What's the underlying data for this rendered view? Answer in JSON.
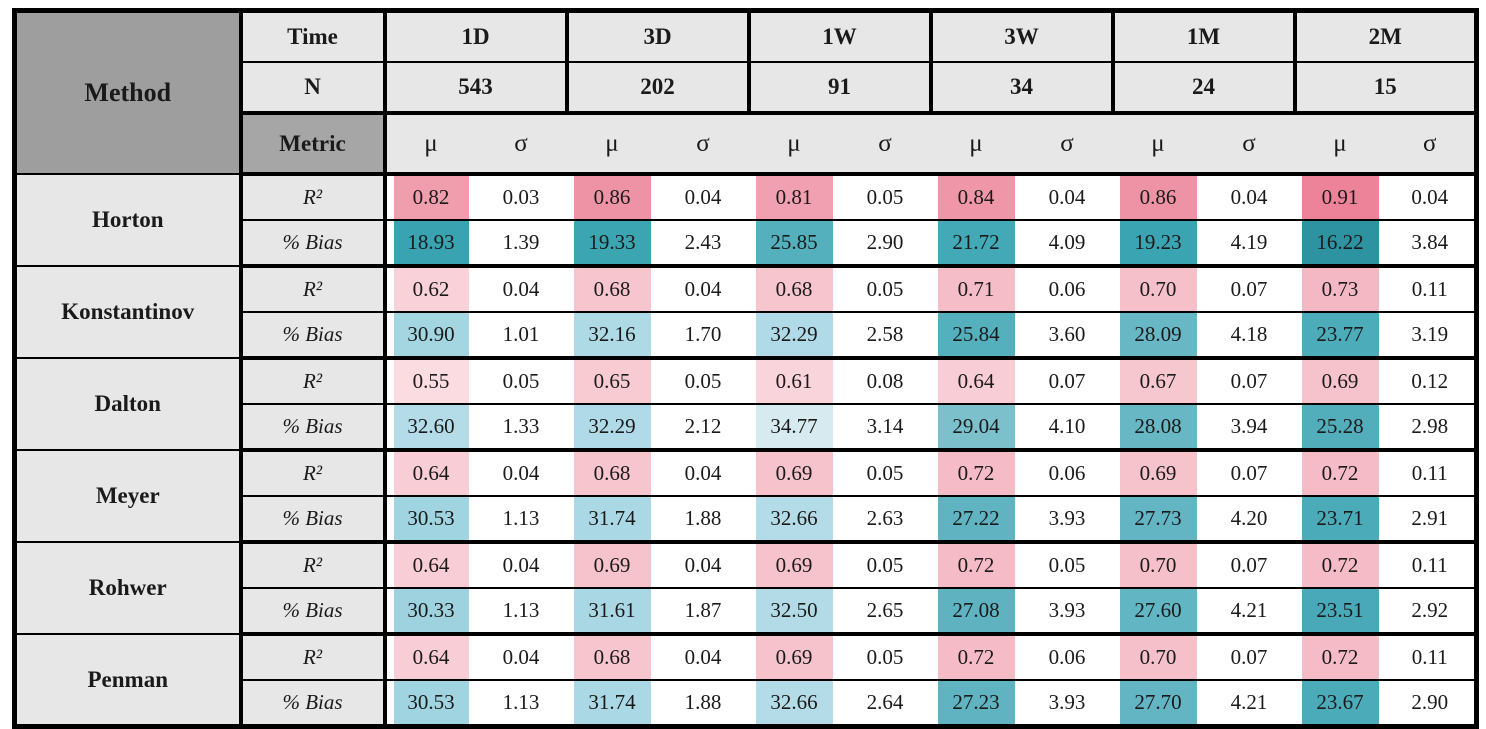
{
  "header": {
    "method_label": "Method",
    "time_label": "Time",
    "n_label": "N",
    "metric_label": "Metric",
    "mu": "μ",
    "sigma": "σ",
    "periods": [
      {
        "time": "1D",
        "n": "543"
      },
      {
        "time": "3D",
        "n": "202"
      },
      {
        "time": "1W",
        "n": "91"
      },
      {
        "time": "3W",
        "n": "34"
      },
      {
        "time": "1M",
        "n": "24"
      },
      {
        "time": "2M",
        "n": "15"
      }
    ]
  },
  "metric_row_labels": {
    "r2": "R²",
    "bias": "% Bias"
  },
  "colors": {
    "border": "#000000",
    "header_dark_gray": "#9e9e9e",
    "metric_gray": "#a6a6a6",
    "light_gray": "#e7e7e7",
    "r2_scale_low": "#fadce1",
    "r2_scale_high": "#ec8398",
    "bias_scale_low": "#d7eaf0",
    "bias_scale_high": "#2e93a1"
  },
  "methods": [
    {
      "name": "Horton",
      "r2": {
        "mu": [
          "0.82",
          "0.86",
          "0.81",
          "0.84",
          "0.86",
          "0.91"
        ],
        "sigma": [
          "0.03",
          "0.04",
          "0.05",
          "0.04",
          "0.04",
          "0.04"
        ],
        "mu_colors": [
          "#f09dad",
          "#ee92a5",
          "#f0a0b0",
          "#ef97a9",
          "#ee92a5",
          "#ec8398"
        ]
      },
      "bias": {
        "mu": [
          "18.93",
          "19.33",
          "25.85",
          "21.72",
          "19.23",
          "16.22"
        ],
        "sigma": [
          "1.39",
          "2.43",
          "2.90",
          "4.09",
          "4.19",
          "3.84"
        ],
        "mu_colors": [
          "#39a3b1",
          "#3ba5b2",
          "#55b0bd",
          "#44a9b6",
          "#3aa4b2",
          "#2e93a1"
        ]
      }
    },
    {
      "name": "Konstantinov",
      "r2": {
        "mu": [
          "0.62",
          "0.68",
          "0.68",
          "0.71",
          "0.70",
          "0.73"
        ],
        "sigma": [
          "0.04",
          "0.04",
          "0.05",
          "0.06",
          "0.07",
          "0.11"
        ],
        "mu_colors": [
          "#f9d2d9",
          "#f7c5ce",
          "#f7c5ce",
          "#f5bdc8",
          "#f6c0ca",
          "#f4b8c4"
        ]
      },
      "bias": {
        "mu": [
          "30.90",
          "32.16",
          "32.29",
          "25.84",
          "28.09",
          "23.77"
        ],
        "sigma": [
          "1.01",
          "1.70",
          "2.58",
          "3.60",
          "4.18",
          "3.19"
        ],
        "mu_colors": [
          "#a4d6e2",
          "#aedae6",
          "#b0dae7",
          "#55b0bd",
          "#67b7c4",
          "#4dacba"
        ]
      }
    },
    {
      "name": "Dalton",
      "r2": {
        "mu": [
          "0.55",
          "0.65",
          "0.61",
          "0.64",
          "0.67",
          "0.69"
        ],
        "sigma": [
          "0.05",
          "0.05",
          "0.08",
          "0.07",
          "0.07",
          "0.12"
        ],
        "mu_colors": [
          "#fadce1",
          "#f8cbd3",
          "#f9d4da",
          "#f8cdd5",
          "#f7c7d0",
          "#f6c2cc"
        ]
      },
      "bias": {
        "mu": [
          "32.60",
          "32.29",
          "34.77",
          "29.04",
          "28.08",
          "25.28"
        ],
        "sigma": [
          "1.33",
          "2.12",
          "3.14",
          "4.10",
          "3.94",
          "2.98"
        ],
        "mu_colors": [
          "#b3dbe8",
          "#b0dae7",
          "#d7eaf0",
          "#7cc0cc",
          "#67b7c4",
          "#53aebc"
        ]
      }
    },
    {
      "name": "Meyer",
      "r2": {
        "mu": [
          "0.64",
          "0.68",
          "0.69",
          "0.72",
          "0.69",
          "0.72"
        ],
        "sigma": [
          "0.04",
          "0.04",
          "0.05",
          "0.06",
          "0.07",
          "0.11"
        ],
        "mu_colors": [
          "#f8cdd5",
          "#f7c5ce",
          "#f6c2cc",
          "#f5bbc6",
          "#f6c2cc",
          "#f5bbc6"
        ]
      },
      "bias": {
        "mu": [
          "30.53",
          "31.74",
          "32.66",
          "27.22",
          "27.73",
          "23.71"
        ],
        "sigma": [
          "1.13",
          "1.88",
          "2.63",
          "3.93",
          "4.20",
          "2.91"
        ],
        "mu_colors": [
          "#a0d4e0",
          "#abd8e5",
          "#b4dce8",
          "#60b4c1",
          "#63b5c3",
          "#4cabb9"
        ]
      }
    },
    {
      "name": "Rohwer",
      "r2": {
        "mu": [
          "0.64",
          "0.69",
          "0.69",
          "0.72",
          "0.70",
          "0.72"
        ],
        "sigma": [
          "0.04",
          "0.04",
          "0.05",
          "0.05",
          "0.07",
          "0.11"
        ],
        "mu_colors": [
          "#f8cdd5",
          "#f6c2cc",
          "#f6c2cc",
          "#f5bbc6",
          "#f6c0ca",
          "#f5bbc6"
        ]
      },
      "bias": {
        "mu": [
          "30.33",
          "31.61",
          "32.50",
          "27.08",
          "27.60",
          "23.51"
        ],
        "sigma": [
          "1.13",
          "1.87",
          "2.65",
          "3.93",
          "4.21",
          "2.92"
        ],
        "mu_colors": [
          "#9dd2de",
          "#a9d8e4",
          "#b2dbe7",
          "#5fb3c1",
          "#62b5c2",
          "#4aa9b8"
        ]
      }
    },
    {
      "name": "Penman",
      "r2": {
        "mu": [
          "0.64",
          "0.68",
          "0.69",
          "0.72",
          "0.70",
          "0.72"
        ],
        "sigma": [
          "0.04",
          "0.04",
          "0.05",
          "0.06",
          "0.07",
          "0.11"
        ],
        "mu_colors": [
          "#f8cdd5",
          "#f7c5ce",
          "#f6c2cc",
          "#f5bbc6",
          "#f6c0ca",
          "#f5bbc6"
        ]
      },
      "bias": {
        "mu": [
          "30.53",
          "31.74",
          "32.66",
          "27.23",
          "27.70",
          "23.67"
        ],
        "sigma": [
          "1.13",
          "1.88",
          "2.64",
          "3.93",
          "4.21",
          "2.90"
        ],
        "mu_colors": [
          "#a0d4e0",
          "#abd8e5",
          "#b4dce8",
          "#60b4c1",
          "#63b5c3",
          "#4cabb9"
        ]
      }
    }
  ]
}
